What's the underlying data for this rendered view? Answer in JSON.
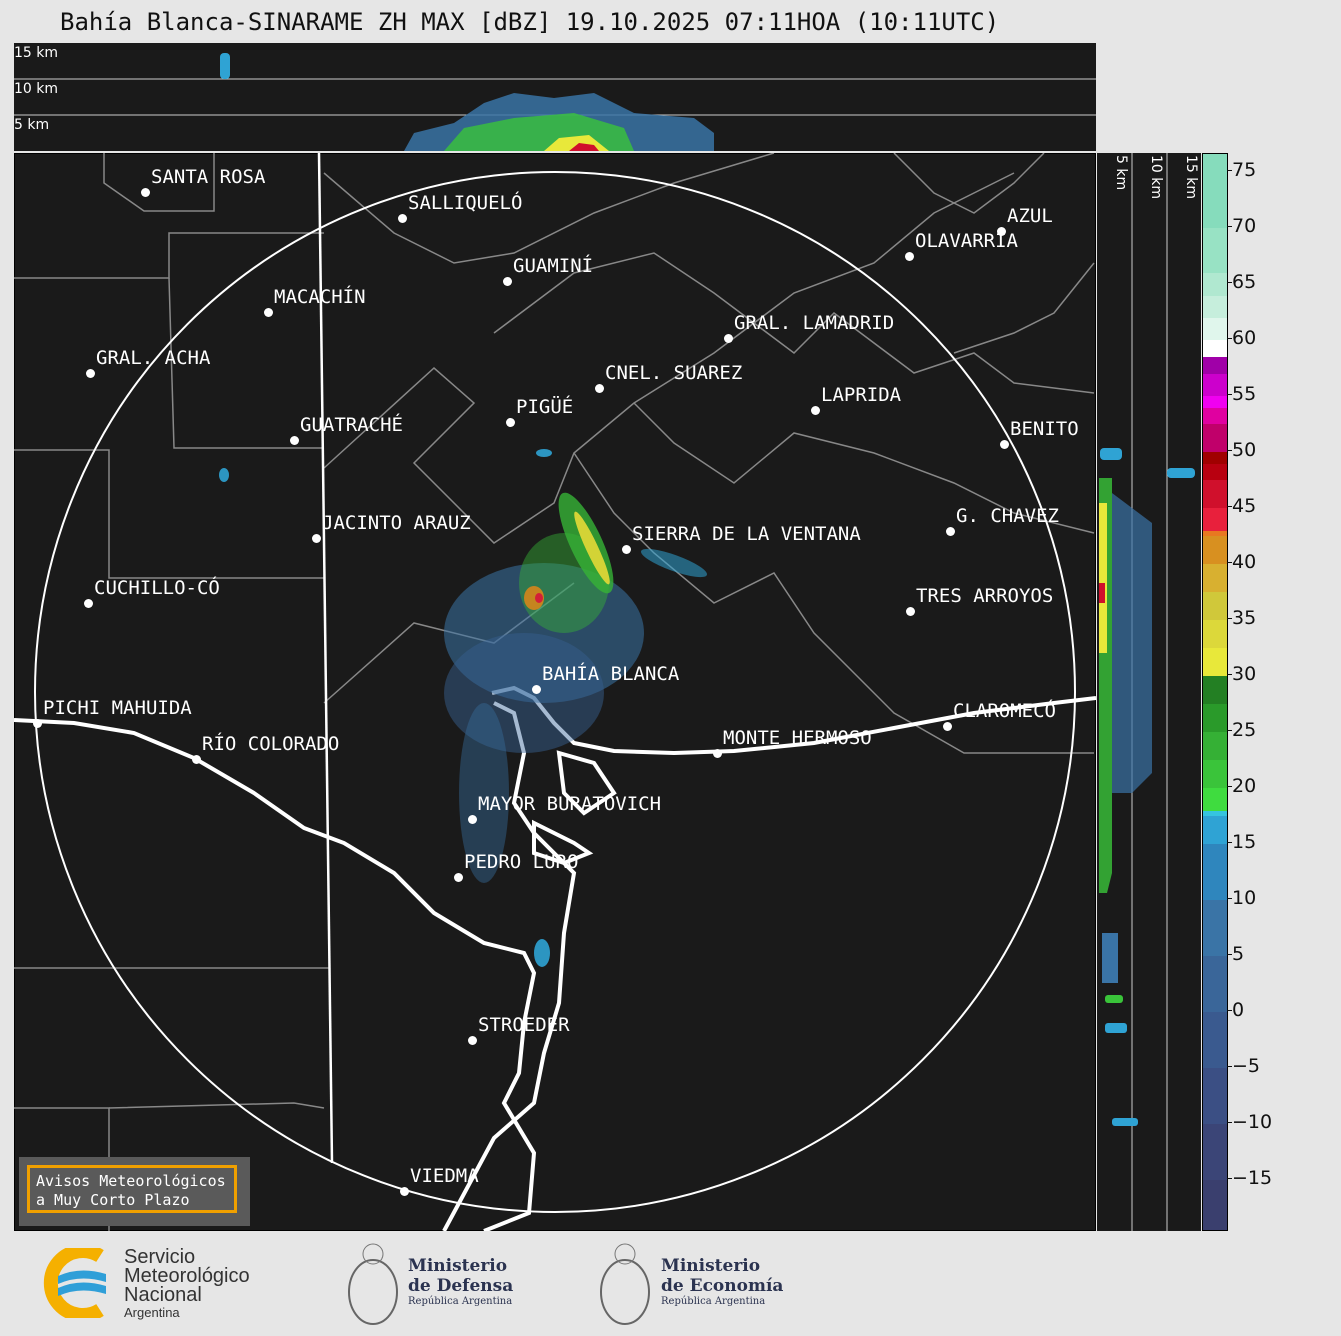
{
  "title": "Bahía Blanca-SINARAME ZH MAX [dBZ] 19.10.2025 07:11HOA (10:11UTC)",
  "top_cross_section": {
    "height_labels": [
      "15 km",
      "10 km",
      "5 km"
    ]
  },
  "right_cross_section": {
    "height_labels": [
      "5 km",
      "10 km",
      "15 km"
    ]
  },
  "colorbar": {
    "unit": "dBZ",
    "range": [
      -19.5,
      76.6
    ],
    "ticks": [
      "75",
      "70",
      "65",
      "60",
      "55",
      "50",
      "45",
      "40",
      "35",
      "30",
      "25",
      "20",
      "15",
      "10",
      "5",
      "0",
      "−5",
      "−10",
      "−15"
    ],
    "stops": [
      [
        -20,
        "#3a3f6e"
      ],
      [
        -15,
        "#3b4577"
      ],
      [
        -10,
        "#3b4f84"
      ],
      [
        -5,
        "#3a5a8f"
      ],
      [
        0,
        "#3a6699"
      ],
      [
        5,
        "#3a74a6"
      ],
      [
        10,
        "#2f86bd"
      ],
      [
        15,
        "#2fa3d4"
      ],
      [
        17.5,
        "#35c4e0"
      ],
      [
        18,
        "#3fdc3f"
      ],
      [
        20,
        "#3ac43a"
      ],
      [
        22.5,
        "#35b035"
      ],
      [
        25,
        "#2a9a2a"
      ],
      [
        27.5,
        "#237f23"
      ],
      [
        30,
        "#e8e83a"
      ],
      [
        32.5,
        "#dcd83a"
      ],
      [
        35,
        "#d0c83a"
      ],
      [
        37.5,
        "#d8b030"
      ],
      [
        40,
        "#d89020"
      ],
      [
        42.5,
        "#e87820"
      ],
      [
        43,
        "#e8203c"
      ],
      [
        45,
        "#d0102c"
      ],
      [
        47.5,
        "#b80010"
      ],
      [
        49,
        "#a00000"
      ],
      [
        50,
        "#c0006a"
      ],
      [
        52.5,
        "#e000a0"
      ],
      [
        54,
        "#f000f0"
      ],
      [
        55,
        "#cc00cc"
      ],
      [
        57,
        "#a000a8"
      ],
      [
        58.5,
        "#ffffff"
      ],
      [
        60,
        "#e0f6ec"
      ],
      [
        62,
        "#c6eedc"
      ],
      [
        64,
        "#b0e8d0"
      ],
      [
        66,
        "#98e2c4"
      ],
      [
        70,
        "#86dcbc"
      ]
    ]
  },
  "cities": [
    "SANTA ROSA",
    "SALLIQUELÓ",
    "GUAMINÍ",
    "MACACHÍN",
    "GRAL. ACHA",
    "GUATRACHÉ",
    "PIGÜÉ",
    "CNEL. SUAREZ",
    "GRAL. LAMADRID",
    "LAPRIDA",
    "OLAVARRÍA",
    "AZUL",
    "BENITO",
    "G. CHAVEZ",
    "TRES ARROYOS",
    "SIERRA DE LA VENTANA",
    "JACINTO ARAUZ",
    "CUCHILLO-CÓ",
    "PICHI MAHUIDA",
    "RÍO COLORADO",
    "BAHÍA BLANCA",
    "MONTE HERMOSO",
    "CLAROMECÓ",
    "MAYOR BURATOVICH",
    "PEDRO LURO",
    "STROEDER",
    "VIEDMA"
  ],
  "avisos": {
    "line1": "Avisos Meteorológicos",
    "line2": "a Muy Corto Plazo"
  },
  "footer": {
    "smn": {
      "line1": "Servicio",
      "line2": "Meteorológico",
      "line3": "Nacional",
      "line4": "Argentina"
    },
    "defensa": {
      "line1": "Ministerio",
      "line2": "de Defensa",
      "line3": "República Argentina"
    },
    "economia": {
      "line1": "Ministerio",
      "line2": "de Economía",
      "line3": "República Argentina"
    }
  }
}
